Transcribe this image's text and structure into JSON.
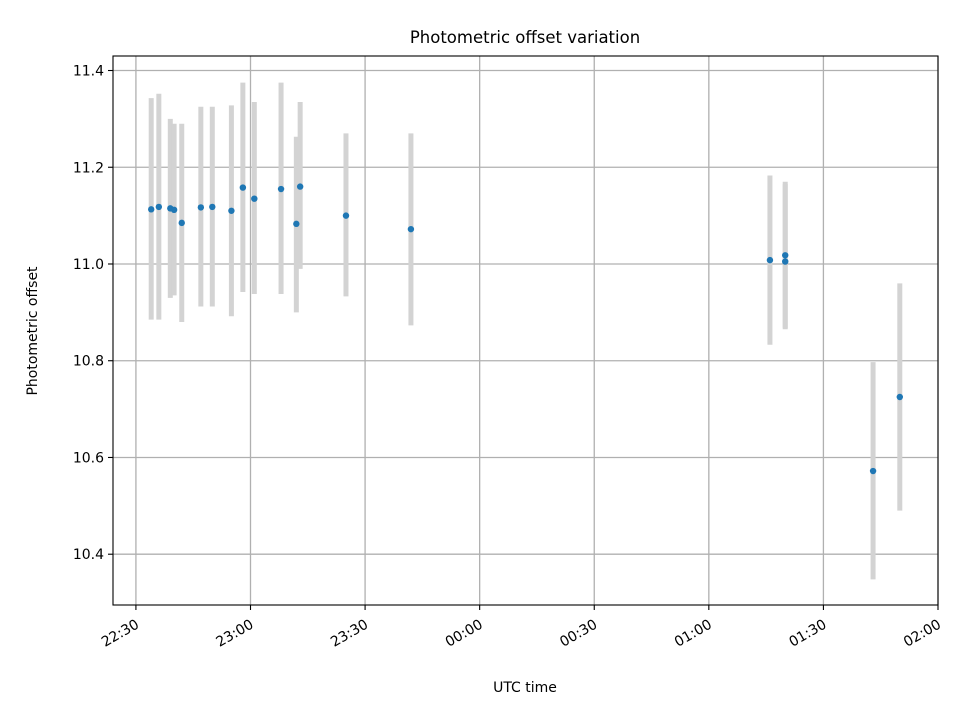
{
  "chart_data": {
    "type": "scatter",
    "title": "Photometric offset variation",
    "xlabel": "UTC time",
    "ylabel": "Photometric offset",
    "x_ticks": [
      "22:30",
      "23:00",
      "23:30",
      "00:00",
      "00:30",
      "01:00",
      "01:30",
      "02:00"
    ],
    "y_ticks": [
      "10.4",
      "10.6",
      "10.8",
      "11.0",
      "11.2",
      "11.4"
    ],
    "xlim": [
      "2023-01-01T22:24",
      "2023-01-02T02:00"
    ],
    "ylim": [
      10.295,
      11.43
    ],
    "grid": true,
    "colors": {
      "points": "#1f77b4",
      "errorbars": "#d3d3d3"
    },
    "series": [
      {
        "points": [
          {
            "x": "2023-01-01T22:34",
            "y": 11.113,
            "ylow": 10.885,
            "yhigh": 11.343
          },
          {
            "x": "2023-01-01T22:36",
            "y": 11.118,
            "ylow": 10.885,
            "yhigh": 11.352
          },
          {
            "x": "2023-01-01T22:39",
            "y": 11.115,
            "ylow": 10.93,
            "yhigh": 11.3
          },
          {
            "x": "2023-01-01T22:40",
            "y": 11.112,
            "ylow": 10.935,
            "yhigh": 11.29
          },
          {
            "x": "2023-01-01T22:42",
            "y": 11.085,
            "ylow": 10.88,
            "yhigh": 11.29
          },
          {
            "x": "2023-01-01T22:47",
            "y": 11.117,
            "ylow": 10.912,
            "yhigh": 11.325
          },
          {
            "x": "2023-01-01T22:50",
            "y": 11.118,
            "ylow": 10.912,
            "yhigh": 11.325
          },
          {
            "x": "2023-01-01T22:55",
            "y": 11.11,
            "ylow": 10.892,
            "yhigh": 11.328
          },
          {
            "x": "2023-01-01T22:58",
            "y": 11.158,
            "ylow": 10.942,
            "yhigh": 11.375
          },
          {
            "x": "2023-01-01T23:01",
            "y": 11.135,
            "ylow": 10.938,
            "yhigh": 11.335
          },
          {
            "x": "2023-01-01T23:08",
            "y": 11.155,
            "ylow": 10.938,
            "yhigh": 11.375
          },
          {
            "x": "2023-01-01T23:12",
            "y": 11.083,
            "ylow": 10.9,
            "yhigh": 11.263
          },
          {
            "x": "2023-01-01T23:13",
            "y": 11.16,
            "ylow": 10.99,
            "yhigh": 11.335
          },
          {
            "x": "2023-01-01T23:25",
            "y": 11.1,
            "ylow": 10.933,
            "yhigh": 11.27
          },
          {
            "x": "2023-01-01T23:42",
            "y": 11.072,
            "ylow": 10.873,
            "yhigh": 11.27
          },
          {
            "x": "2023-01-02T01:16",
            "y": 11.008,
            "ylow": 10.833,
            "yhigh": 11.183
          },
          {
            "x": "2023-01-02T01:20",
            "y": 11.005,
            "ylow": 10.868,
            "yhigh": 11.17
          },
          {
            "x": "2023-01-02T01:20",
            "y": 11.018,
            "ylow": 10.865,
            "yhigh": 11.165
          },
          {
            "x": "2023-01-02T01:43",
            "y": 10.572,
            "ylow": 10.348,
            "yhigh": 10.797
          },
          {
            "x": "2023-01-02T01:50",
            "y": 10.725,
            "ylow": 10.49,
            "yhigh": 10.96
          }
        ]
      }
    ]
  }
}
